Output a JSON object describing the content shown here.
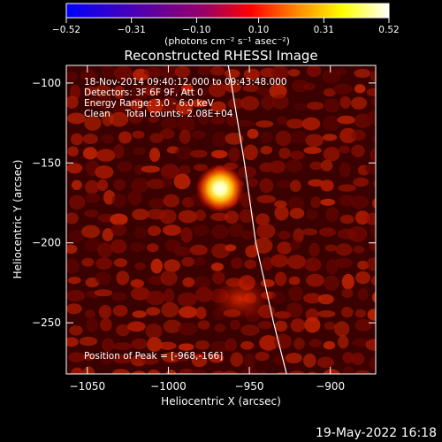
{
  "chart_data": {
    "type": "heatmap",
    "title": "Reconstructed RHESSI Image",
    "xlabel": "Heliocentric X (arcsec)",
    "ylabel": "Heliocentric Y (arcsec)",
    "xlim": [
      -1063,
      -872
    ],
    "ylim": [
      -282,
      -89
    ],
    "x_ticks": [
      -1050,
      -1000,
      -950,
      -900
    ],
    "x_tick_labels": [
      "−1050",
      "−1000",
      "−950",
      "−900"
    ],
    "y_ticks": [
      -100,
      -150,
      -200,
      -250
    ],
    "y_tick_labels": [
      "−100",
      "−150",
      "−200",
      "−250"
    ],
    "colorbar": {
      "min": -0.52,
      "max": 0.52,
      "tick_values": [
        -0.52,
        -0.31,
        -0.1,
        0.1,
        0.31,
        0.52
      ],
      "tick_labels": [
        "−0.52",
        "−0.31",
        "−0.10",
        "0.10",
        "0.31",
        "0.52"
      ],
      "unit_label": "(photons cm⁻² s⁻¹ asec⁻²)",
      "colors": [
        "#0000ff",
        "#3300cc",
        "#660099",
        "#990066",
        "#ff0000",
        "#ff8800",
        "#ffff00",
        "#ffffff"
      ]
    },
    "info_lines": [
      "18-Nov-2014 09:40:12.000 to 09:43:48.000",
      "Detectors: 3F 6F 9F, Att 0",
      "Energy Range: 3.0 - 6.0 keV",
      "Clean     Total counts: 2.08E+04"
    ],
    "peak_label": "Position of Peak = [-968,-166]",
    "peak": {
      "x": -968,
      "y": -166
    },
    "secondary_source": {
      "x": -955,
      "y": -235
    },
    "limb_curve": [
      [
        -963,
        -89
      ],
      [
        -953,
        -150
      ],
      [
        -946,
        -200
      ],
      [
        -935,
        -250
      ],
      [
        -927,
        -282
      ]
    ],
    "footer": "19-May-2022 16:18"
  }
}
